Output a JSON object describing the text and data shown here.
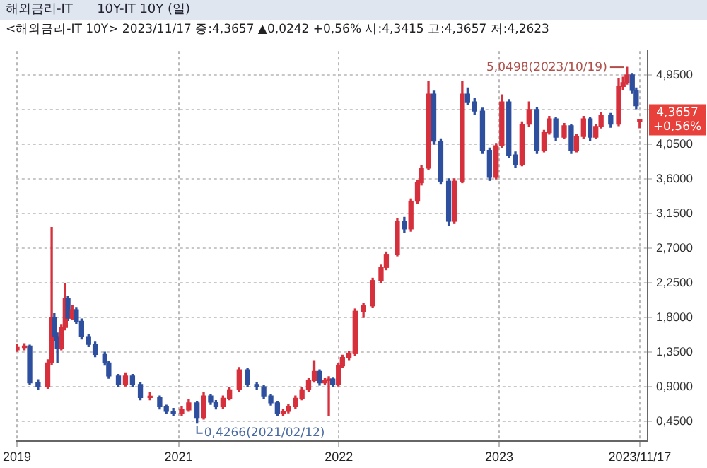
{
  "chart_data": {
    "type": "candlestick",
    "title": "해외금리-IT      10Y-IT 10Y (일)",
    "subtitle": "<해외금리-IT 10Y> 2023/11/17 종:4,3657 ▲0,0242 +0,56% 시:4,3415 고:4,3657 저:4,2623",
    "x": [
      "2019-12-30",
      "2020-01-16",
      "2020-01-28",
      "2020-02-16",
      "2020-03-09",
      "2020-03-18",
      "2020-03-24",
      "2020-03-31",
      "2020-04-09",
      "2020-04-18",
      "2020-04-24",
      "2020-05-04",
      "2020-05-13",
      "2020-05-25",
      "2020-06-10",
      "2020-06-25",
      "2020-07-17",
      "2020-07-26",
      "2020-08-17",
      "2020-09-02",
      "2020-09-18",
      "2020-10-06",
      "2020-10-28",
      "2020-11-19",
      "2020-12-04",
      "2020-12-20",
      "2021-01-08",
      "2021-01-24",
      "2021-02-12",
      "2021-02-27",
      "2021-03-15",
      "2021-03-27",
      "2021-04-12",
      "2021-04-27",
      "2021-05-19",
      "2021-06-07",
      "2021-06-28",
      "2021-07-14",
      "2021-07-30",
      "2021-08-14",
      "2021-08-27",
      "2021-09-08",
      "2021-09-24",
      "2021-10-09",
      "2021-10-24",
      "2021-11-06",
      "2021-11-18",
      "2021-11-30",
      "2021-12-09",
      "2021-12-18",
      "2021-12-31",
      "2022-01-09",
      "2022-01-24",
      "2022-02-07",
      "2022-02-26",
      "2022-03-19",
      "2022-04-07",
      "2022-04-19",
      "2022-05-14",
      "2022-05-30",
      "2022-06-14",
      "2022-06-29",
      "2022-07-08",
      "2022-07-24",
      "2022-08-05",
      "2022-08-21",
      "2022-09-08",
      "2022-09-21",
      "2022-10-09",
      "2022-10-21",
      "2022-11-06",
      "2022-11-24",
      "2022-12-10",
      "2022-12-25",
      "2023-01-07",
      "2023-01-23",
      "2023-02-07",
      "2023-02-22",
      "2023-03-10",
      "2023-03-28",
      "2023-04-13",
      "2023-04-25",
      "2023-05-10",
      "2023-05-29",
      "2023-06-14",
      "2023-06-26",
      "2023-07-12",
      "2023-07-27",
      "2023-08-09",
      "2023-08-21",
      "2023-09-12",
      "2023-09-30",
      "2023-10-10",
      "2023-10-19",
      "2023-10-31",
      "2023-11-09",
      "2023-11-17"
    ],
    "ohlc": [
      [
        1.38,
        1.45,
        1.36,
        1.41
      ],
      [
        1.41,
        1.46,
        1.38,
        1.43
      ],
      [
        1.43,
        1.44,
        0.93,
        0.95
      ],
      [
        0.95,
        0.99,
        0.86,
        0.9
      ],
      [
        0.9,
        1.25,
        0.88,
        1.21
      ],
      [
        1.21,
        2.97,
        1.19,
        1.8
      ],
      [
        1.8,
        1.85,
        1.5,
        1.55
      ],
      [
        1.55,
        1.6,
        1.21,
        1.4
      ],
      [
        1.4,
        1.7,
        1.38,
        1.67
      ],
      [
        1.67,
        2.24,
        1.64,
        2.05
      ],
      [
        2.05,
        2.08,
        1.76,
        1.79
      ],
      [
        1.79,
        1.95,
        1.77,
        1.9
      ],
      [
        1.9,
        1.93,
        1.72,
        1.75
      ],
      [
        1.75,
        1.78,
        1.52,
        1.55
      ],
      [
        1.55,
        1.58,
        1.42,
        1.45
      ],
      [
        1.45,
        1.48,
        1.29,
        1.32
      ],
      [
        1.32,
        1.35,
        1.18,
        1.21
      ],
      [
        1.21,
        1.23,
        1.01,
        1.04
      ],
      [
        1.04,
        1.06,
        0.9,
        0.93
      ],
      [
        0.93,
        1.08,
        0.91,
        1.04
      ],
      [
        1.04,
        1.06,
        0.9,
        0.93
      ],
      [
        0.93,
        0.95,
        0.73,
        0.76
      ],
      [
        0.76,
        0.82,
        0.73,
        0.76
      ],
      [
        0.76,
        0.78,
        0.61,
        0.64
      ],
      [
        0.64,
        0.66,
        0.55,
        0.58
      ],
      [
        0.58,
        0.62,
        0.52,
        0.55
      ],
      [
        0.55,
        0.64,
        0.53,
        0.6
      ],
      [
        0.6,
        0.73,
        0.58,
        0.69
      ],
      [
        0.69,
        0.71,
        0.4266,
        0.5
      ],
      [
        0.5,
        0.82,
        0.48,
        0.78
      ],
      [
        0.78,
        0.8,
        0.67,
        0.7
      ],
      [
        0.7,
        0.72,
        0.61,
        0.64
      ],
      [
        0.64,
        0.78,
        0.62,
        0.75
      ],
      [
        0.75,
        0.89,
        0.73,
        0.86
      ],
      [
        0.86,
        1.15,
        0.84,
        1.12
      ],
      [
        1.12,
        1.14,
        0.9,
        0.93
      ],
      [
        0.93,
        0.96,
        0.87,
        0.9
      ],
      [
        0.9,
        0.92,
        0.75,
        0.78
      ],
      [
        0.78,
        0.8,
        0.66,
        0.69
      ],
      [
        0.69,
        0.71,
        0.52,
        0.55
      ],
      [
        0.55,
        0.61,
        0.53,
        0.58
      ],
      [
        0.58,
        0.67,
        0.56,
        0.64
      ],
      [
        0.64,
        0.78,
        0.62,
        0.75
      ],
      [
        0.75,
        0.89,
        0.73,
        0.86
      ],
      [
        0.86,
        1.01,
        0.84,
        0.98
      ],
      [
        0.98,
        1.24,
        0.96,
        1.1
      ],
      [
        1.1,
        1.12,
        0.92,
        0.95
      ],
      [
        0.95,
        1.01,
        0.93,
        0.98
      ],
      [
        0.98,
        1.03,
        0.52,
        1.0
      ],
      [
        1.0,
        1.02,
        0.9,
        0.93
      ],
      [
        0.93,
        1.2,
        0.91,
        1.17
      ],
      [
        1.17,
        1.31,
        1.15,
        1.28
      ],
      [
        1.28,
        1.36,
        1.25,
        1.33
      ],
      [
        1.33,
        1.91,
        1.31,
        1.88
      ],
      [
        1.88,
        1.98,
        1.8,
        1.95
      ],
      [
        1.95,
        2.31,
        1.93,
        2.28
      ],
      [
        2.28,
        2.48,
        2.25,
        2.45
      ],
      [
        2.45,
        2.65,
        2.42,
        2.62
      ],
      [
        2.62,
        3.08,
        2.6,
        3.05
      ],
      [
        3.05,
        3.1,
        2.9,
        2.95
      ],
      [
        2.95,
        3.34,
        2.92,
        3.31
      ],
      [
        3.31,
        3.58,
        3.28,
        3.55
      ],
      [
        3.55,
        3.77,
        3.52,
        3.74
      ],
      [
        3.74,
        4.86,
        3.72,
        4.7
      ],
      [
        4.7,
        4.74,
        4.05,
        4.09
      ],
      [
        4.09,
        4.12,
        3.54,
        3.57
      ],
      [
        3.57,
        3.6,
        3.0,
        3.05
      ],
      [
        3.05,
        3.6,
        3.02,
        3.57
      ],
      [
        3.57,
        4.86,
        3.55,
        4.7
      ],
      [
        4.7,
        4.78,
        4.56,
        4.6
      ],
      [
        4.6,
        4.64,
        4.44,
        4.48
      ],
      [
        4.48,
        4.52,
        3.93,
        3.97
      ],
      [
        3.97,
        4.0,
        3.58,
        3.62
      ],
      [
        3.62,
        4.06,
        3.6,
        4.03
      ],
      [
        4.03,
        4.69,
        4.0,
        4.6
      ],
      [
        4.6,
        4.63,
        3.88,
        3.91
      ],
      [
        3.91,
        3.95,
        3.75,
        3.79
      ],
      [
        3.79,
        4.34,
        3.77,
        4.31
      ],
      [
        4.31,
        4.6,
        4.28,
        4.5
      ],
      [
        4.5,
        4.53,
        3.93,
        3.97
      ],
      [
        3.97,
        4.23,
        3.95,
        4.2
      ],
      [
        4.2,
        4.41,
        4.18,
        4.38
      ],
      [
        4.38,
        4.4,
        4.1,
        4.14
      ],
      [
        4.14,
        4.32,
        4.12,
        4.29
      ],
      [
        4.29,
        4.31,
        3.93,
        3.97
      ],
      [
        3.97,
        4.18,
        3.95,
        4.15
      ],
      [
        4.15,
        4.41,
        4.13,
        4.38
      ],
      [
        4.38,
        4.4,
        4.1,
        4.14
      ],
      [
        4.14,
        4.31,
        4.12,
        4.28
      ],
      [
        4.28,
        4.46,
        4.26,
        4.43
      ],
      [
        4.43,
        4.45,
        4.27,
        4.31
      ],
      [
        4.31,
        4.9,
        4.29,
        4.8
      ],
      [
        4.8,
        4.92,
        4.76,
        4.85
      ],
      [
        4.85,
        5.0498,
        4.83,
        4.95
      ],
      [
        4.95,
        4.97,
        4.71,
        4.75
      ],
      [
        4.75,
        4.78,
        4.51,
        4.55
      ],
      [
        4.3415,
        4.3657,
        4.2623,
        4.3657
      ]
    ],
    "xlim": [
      "2019-12-28",
      "2023-12-05"
    ],
    "xticks": [
      {
        "value": "2019-12-30",
        "label": "2019"
      },
      {
        "value": "2021-01-01",
        "label": "2021"
      },
      {
        "value": "2022-01-01",
        "label": "2022"
      },
      {
        "value": "2023-01-01",
        "label": "2023"
      },
      {
        "value": "2023-11-17",
        "label": "2023/11/17"
      }
    ],
    "ylim": [
      0.19,
      5.26
    ],
    "yticks": [
      {
        "value": 0.45,
        "label": "0,4500"
      },
      {
        "value": 0.9,
        "label": "0,9000"
      },
      {
        "value": 1.35,
        "label": "1,3500"
      },
      {
        "value": 1.8,
        "label": "1,8000"
      },
      {
        "value": 2.25,
        "label": "2,2500"
      },
      {
        "value": 2.7,
        "label": "2,7000"
      },
      {
        "value": 3.15,
        "label": "3,1500"
      },
      {
        "value": 3.6,
        "label": "3,6000"
      },
      {
        "value": 4.05,
        "label": "4,0500"
      },
      {
        "value": 4.5,
        "label": null
      },
      {
        "value": 4.95,
        "label": "4,9500"
      }
    ],
    "annotations": [
      {
        "text": "5,0498(2023/10/19)",
        "x": "2023-10-19",
        "y": 5.0498
      },
      {
        "text": "0,4266(2021/02/12)",
        "x": "2021-02-12",
        "y": 0.4266
      },
      {
        "text": "4,3657\n+0,56%",
        "x": "2023-11-17",
        "y": 4.3657
      }
    ],
    "grid": true,
    "legend": false
  }
}
